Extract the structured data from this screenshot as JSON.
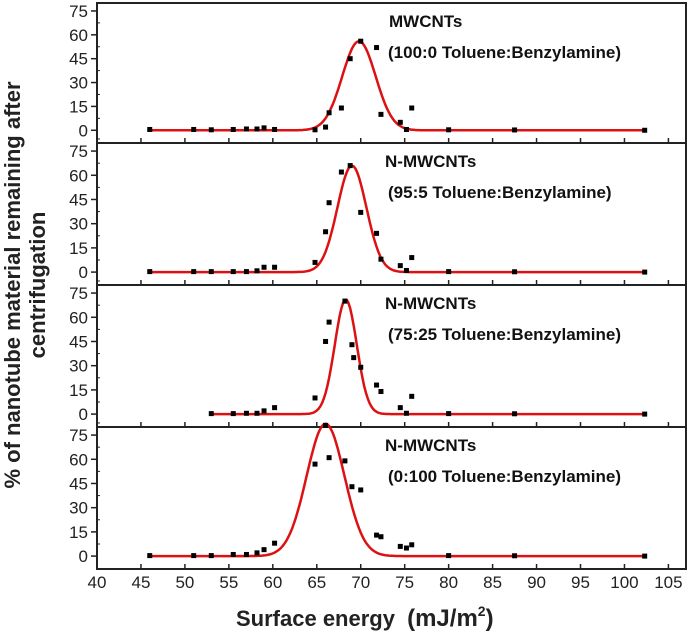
{
  "chart_data": {
    "type": "scatter",
    "xlabel": "Surface energy",
    "xlabel_unit": "(mJ/m",
    "xlabel_unit_sup": "2",
    "xlabel_unit_close": ")",
    "ylabel_line1": "% of nanotube material remaining after",
    "ylabel_line2": "centrifugation",
    "xlim": [
      40,
      107
    ],
    "xticks": [
      40,
      45,
      50,
      55,
      60,
      65,
      70,
      75,
      80,
      85,
      90,
      95,
      100,
      105
    ],
    "ylim": [
      -8,
      80
    ],
    "yticks": [
      0,
      15,
      30,
      45,
      60,
      75
    ],
    "colors": {
      "fit": "#dd1111",
      "points": "#000000",
      "axes": "#222222"
    },
    "panels": [
      {
        "label_line1": "MWCNTs",
        "label_line2": "(100:0 Toluene:Benzylamine)",
        "points": [
          [
            46,
            0.5
          ],
          [
            51,
            0.5
          ],
          [
            53,
            0.3
          ],
          [
            55.5,
            0.5
          ],
          [
            57,
            0.8
          ],
          [
            58.2,
            0.8
          ],
          [
            59,
            1.5
          ],
          [
            60.2,
            0.5
          ],
          [
            64.8,
            0.3
          ],
          [
            66,
            2
          ],
          [
            66.4,
            11
          ],
          [
            67.8,
            14
          ],
          [
            68.8,
            45
          ],
          [
            70,
            56
          ],
          [
            71.8,
            52
          ],
          [
            72.3,
            10
          ],
          [
            74.5,
            5
          ],
          [
            75.2,
            0.5
          ],
          [
            75.8,
            14
          ],
          [
            80,
            0.3
          ],
          [
            87.5,
            0.2
          ],
          [
            102.3,
            0
          ]
        ],
        "fit": {
          "amplitude": 56,
          "center": 69.8,
          "sigma": 1.9
        }
      },
      {
        "label_line1": "N-MWCNTs",
        "label_line2": "(95:5 Toluene:Benzylamine)",
        "points": [
          [
            46,
            0.3
          ],
          [
            51,
            0.3
          ],
          [
            53,
            0.3
          ],
          [
            55.5,
            0.3
          ],
          [
            57,
            0.3
          ],
          [
            58.2,
            0.8
          ],
          [
            59,
            3
          ],
          [
            60.2,
            3
          ],
          [
            64.8,
            6
          ],
          [
            66,
            25
          ],
          [
            66.4,
            43
          ],
          [
            67.8,
            62
          ],
          [
            68.8,
            66
          ],
          [
            70,
            37
          ],
          [
            71.8,
            24
          ],
          [
            72.3,
            8
          ],
          [
            74.5,
            4
          ],
          [
            75.2,
            1
          ],
          [
            75.8,
            9
          ],
          [
            80,
            0.3
          ],
          [
            87.5,
            0.2
          ],
          [
            102.3,
            0
          ]
        ],
        "fit": {
          "amplitude": 66,
          "center": 69.0,
          "sigma": 1.65
        }
      },
      {
        "label_line1": "N-MWCNTs",
        "label_line2": "(75:25 Toluene:Benzylamine)",
        "points": [
          [
            53,
            0.3
          ],
          [
            55.5,
            0.3
          ],
          [
            57,
            0.5
          ],
          [
            58.2,
            0.5
          ],
          [
            59,
            2
          ],
          [
            60.2,
            4
          ],
          [
            64.8,
            10
          ],
          [
            66,
            45
          ],
          [
            66.4,
            57
          ],
          [
            68.2,
            70
          ],
          [
            69,
            43
          ],
          [
            69.2,
            35
          ],
          [
            70,
            29
          ],
          [
            71.8,
            18
          ],
          [
            72.3,
            14
          ],
          [
            74.5,
            4
          ],
          [
            75.2,
            0.5
          ],
          [
            75.8,
            11
          ],
          [
            80,
            0.3
          ],
          [
            87.5,
            0.2
          ],
          [
            102.3,
            0
          ]
        ],
        "fit": {
          "amplitude": 71,
          "center": 68.3,
          "sigma": 1.25
        }
      },
      {
        "label_line1": "N-MWCNTs",
        "label_line2": "(0:100 Toluene:Benzylamine)",
        "points": [
          [
            46,
            0.3
          ],
          [
            51,
            0.3
          ],
          [
            53,
            0.3
          ],
          [
            55.5,
            1
          ],
          [
            57,
            1
          ],
          [
            58.2,
            2
          ],
          [
            59,
            4
          ],
          [
            60.2,
            8
          ],
          [
            64.8,
            57
          ],
          [
            66,
            81
          ],
          [
            66.4,
            61
          ],
          [
            68.2,
            59
          ],
          [
            69,
            43
          ],
          [
            70,
            41
          ],
          [
            71.8,
            13
          ],
          [
            72.3,
            12
          ],
          [
            74.5,
            6
          ],
          [
            75.2,
            5
          ],
          [
            75.8,
            7
          ],
          [
            80,
            0.3
          ],
          [
            87.5,
            0.2
          ],
          [
            102.3,
            0
          ]
        ],
        "fit": {
          "amplitude": 82,
          "center": 66.0,
          "sigma": 2.15
        }
      }
    ]
  }
}
